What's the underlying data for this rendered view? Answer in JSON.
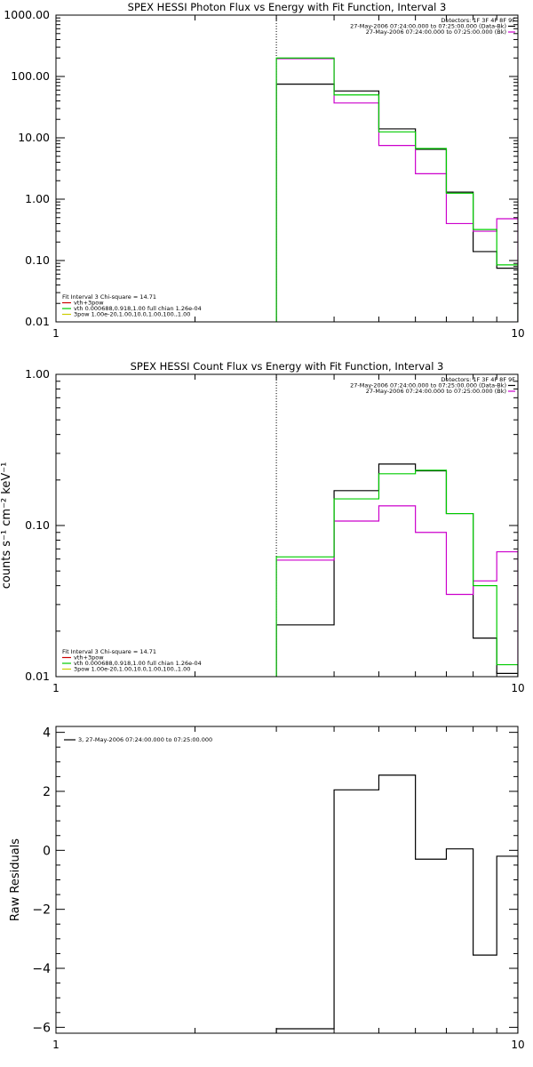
{
  "chart_data": [
    {
      "type": "line",
      "title": "SPEX HESSI Photon Flux vs Energy with Fit Function, Interval 3",
      "xlabel": "",
      "ylabel": "",
      "x_scale": "log",
      "y_scale": "log",
      "xlim": [
        1,
        10
      ],
      "ylim": [
        0.01,
        1000
      ],
      "x_ticklabels": [
        "1",
        "10"
      ],
      "y_ticklabels": [
        "0.01",
        "0.10",
        "1.00",
        "10.00",
        "100.00",
        "1000.00"
      ],
      "vline_x": 3,
      "legend_top": {
        "header": "Detectors: 1F 3F 4F 8F 9F",
        "entries": [
          {
            "text": "27-May-2006 07:24:00.000 to 07:25:00.000 (Data-Bk)",
            "color": "#000000"
          },
          {
            "text": "27-May-2006 07:24:00.000 to 07:25:00.000 (Bk)",
            "color": "#cc00cc"
          }
        ]
      },
      "legend_bottom": {
        "header": "Fit Interval 3   Chi-square = 14.71",
        "entries": [
          {
            "text": "vth+3pow",
            "color": "#cc0000"
          },
          {
            "text": "vth 0.000688,0.918,1.00  full chian 1.26e-04",
            "color": "#00cc00"
          },
          {
            "text": "3pow 1.00e-20,1.00,10.0,1.00,100.,1.00",
            "color": "#cccc00"
          }
        ]
      },
      "edges": [
        3,
        4,
        5,
        6,
        7,
        8,
        9,
        10
      ],
      "series": [
        {
          "color": "#000000",
          "values": [
            75,
            58,
            14,
            6.5,
            1.3,
            0.14,
            0.075
          ]
        },
        {
          "color": "#cc00cc",
          "values": [
            195,
            37,
            7.5,
            2.6,
            0.4,
            0.3,
            0.48
          ]
        },
        {
          "color": "#00cc00",
          "values": [
            200,
            50,
            12.5,
            6.7,
            1.25,
            0.32,
            0.085
          ]
        }
      ]
    },
    {
      "type": "line",
      "title": "SPEX HESSI Count Flux vs Energy with Fit Function, Interval 3",
      "xlabel": "",
      "ylabel": "counts s⁻¹ cm⁻² keV⁻¹",
      "x_scale": "log",
      "y_scale": "log",
      "xlim": [
        1,
        10
      ],
      "ylim": [
        0.01,
        1.0
      ],
      "x_ticklabels": [
        "1",
        "10"
      ],
      "y_ticklabels": [
        "0.01",
        "0.10",
        "1.00"
      ],
      "vline_x": 3,
      "legend_top": {
        "header": "Detectors: 1F 3F 4F 8F 9F",
        "entries": [
          {
            "text": "27-May-2006 07:24:00.000 to 07:25:00.000 (Data-Bk)",
            "color": "#000000"
          },
          {
            "text": "27-May-2006 07:24:00.000 to 07:25:00.000 (Bk)",
            "color": "#cc00cc"
          }
        ]
      },
      "legend_bottom": {
        "header": "Fit Interval 3   Chi-square = 14.71",
        "entries": [
          {
            "text": "vth+3pow",
            "color": "#cc0000"
          },
          {
            "text": "vth 0.000688,0.918,1.00  full chian 1.26e-04",
            "color": "#00cc00"
          },
          {
            "text": "3pow 1.00e-20,1.00,10.0,1.00,100.,1.00",
            "color": "#cccc00"
          }
        ]
      },
      "edges": [
        3,
        4,
        5,
        6,
        7,
        8,
        9,
        10
      ],
      "series": [
        {
          "color": "#000000",
          "values": [
            0.022,
            0.17,
            0.255,
            0.23,
            0.12,
            0.018,
            0.0105
          ]
        },
        {
          "color": "#cc00cc",
          "values": [
            0.059,
            0.107,
            0.135,
            0.09,
            0.035,
            0.043,
            0.067
          ]
        },
        {
          "color": "#00cc00",
          "values": [
            0.062,
            0.15,
            0.22,
            0.232,
            0.12,
            0.04,
            0.012
          ]
        }
      ]
    },
    {
      "type": "line",
      "title": "",
      "xlabel": "",
      "ylabel": "Raw Residuals",
      "x_scale": "log",
      "y_scale": "linear",
      "xlim": [
        1,
        10
      ],
      "ylim": [
        -6.2,
        4.2
      ],
      "x_ticklabels": [
        "1",
        "10"
      ],
      "y_ticks": [
        -6,
        -4,
        -2,
        0,
        2,
        4
      ],
      "y_ticklabels": [
        "−6",
        "−4",
        "−2",
        "0",
        "2",
        "4"
      ],
      "legend_top": {
        "entries": [
          {
            "text": "3, 27-May-2006 07:24:00.000 to 07:25:00.000",
            "color": "#000000"
          }
        ]
      },
      "edges": [
        3,
        4,
        5,
        6,
        7,
        8,
        9,
        10
      ],
      "series": [
        {
          "color": "#000000",
          "values": [
            -6.05,
            2.05,
            2.55,
            -0.3,
            0.05,
            -3.55,
            -0.2
          ]
        }
      ]
    }
  ]
}
